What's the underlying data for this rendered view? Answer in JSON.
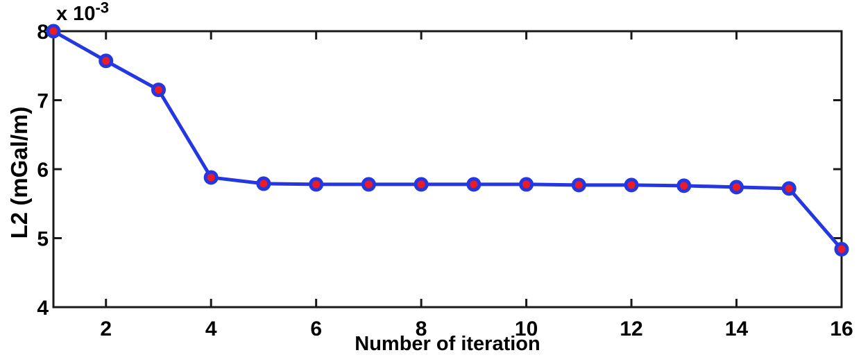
{
  "chart_data": {
    "type": "line",
    "title": "",
    "xlabel": "Number of iteration",
    "ylabel": "L2 (mGal/m)",
    "y_scale_label": {
      "base": "x 10",
      "exponent": "-3"
    },
    "x": [
      1,
      2,
      3,
      4,
      5,
      6,
      7,
      8,
      9,
      10,
      11,
      12,
      13,
      14,
      15,
      16
    ],
    "y": [
      8.0,
      7.57,
      7.15,
      5.88,
      5.79,
      5.78,
      5.78,
      5.78,
      5.78,
      5.78,
      5.77,
      5.77,
      5.76,
      5.74,
      5.72,
      4.84
    ],
    "xlim": [
      1,
      16
    ],
    "ylim": [
      4,
      8
    ],
    "xticks": [
      2,
      4,
      6,
      8,
      10,
      12,
      14,
      16
    ],
    "yticks": [
      4,
      5,
      6,
      7,
      8
    ],
    "grid": false,
    "legend": null,
    "marker": "circle",
    "colors": {
      "line": "#2537e0",
      "marker_face": "#ec1c24",
      "marker_edge": "#2537e0",
      "axis": "#1a1a1a",
      "text": "#000000"
    }
  }
}
